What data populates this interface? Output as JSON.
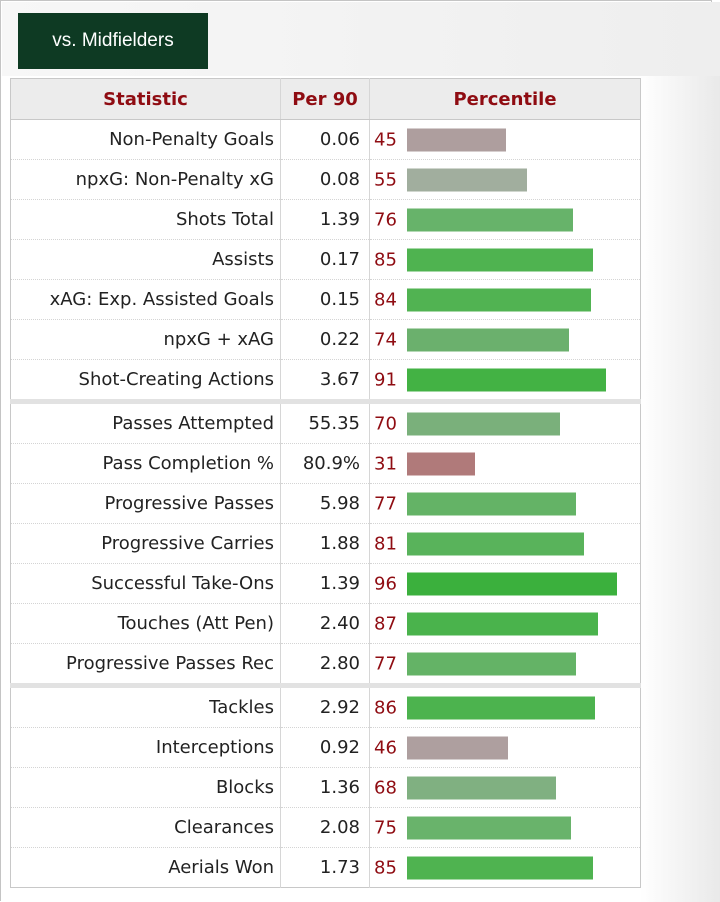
{
  "tab": {
    "label": "vs. Midfielders"
  },
  "table": {
    "headers": {
      "statistic": "Statistic",
      "per90": "Per 90",
      "percentile": "Percentile"
    },
    "groups": [
      [
        {
          "stat": "Non-Penalty Goals",
          "per90": "0.06",
          "percentile": 45,
          "color": "#ae9e9e"
        },
        {
          "stat": "npxG: Non-Penalty xG",
          "per90": "0.08",
          "percentile": 55,
          "color": "#a1ae9e"
        },
        {
          "stat": "Shots Total",
          "per90": "1.39",
          "percentile": 76,
          "color": "#67b36a"
        },
        {
          "stat": "Assists",
          "per90": "0.17",
          "percentile": 85,
          "color": "#4fb350"
        },
        {
          "stat": "xAG: Exp. Assisted Goals",
          "per90": "0.15",
          "percentile": 84,
          "color": "#51b352"
        },
        {
          "stat": "npxG + xAG",
          "per90": "0.22",
          "percentile": 74,
          "color": "#6bb06d"
        },
        {
          "stat": "Shot-Creating Actions",
          "per90": "3.67",
          "percentile": 91,
          "color": "#43b244"
        }
      ],
      [
        {
          "stat": "Passes Attempted",
          "per90": "55.35",
          "percentile": 70,
          "color": "#7ab07b"
        },
        {
          "stat": "Pass Completion %",
          "per90": "80.9%",
          "percentile": 31,
          "color": "#b07a7a"
        },
        {
          "stat": "Progressive Passes",
          "per90": "5.98",
          "percentile": 77,
          "color": "#64b366"
        },
        {
          "stat": "Progressive Carries",
          "per90": "1.88",
          "percentile": 81,
          "color": "#59b35b"
        },
        {
          "stat": "Successful Take-Ons",
          "per90": "1.39",
          "percentile": 96,
          "color": "#3bb03d"
        },
        {
          "stat": "Touches (Att Pen)",
          "per90": "2.40",
          "percentile": 87,
          "color": "#4ab34c"
        },
        {
          "stat": "Progressive Passes Rec",
          "per90": "2.80",
          "percentile": 77,
          "color": "#64b366"
        }
      ],
      [
        {
          "stat": "Tackles",
          "per90": "2.92",
          "percentile": 86,
          "color": "#4cb34e"
        },
        {
          "stat": "Interceptions",
          "per90": "0.92",
          "percentile": 46,
          "color": "#ae9f9f"
        },
        {
          "stat": "Blocks",
          "per90": "1.36",
          "percentile": 68,
          "color": "#80b081"
        },
        {
          "stat": "Clearances",
          "per90": "2.08",
          "percentile": 75,
          "color": "#69b36b"
        },
        {
          "stat": "Aerials Won",
          "per90": "1.73",
          "percentile": 85,
          "color": "#4fb350"
        }
      ]
    ]
  }
}
